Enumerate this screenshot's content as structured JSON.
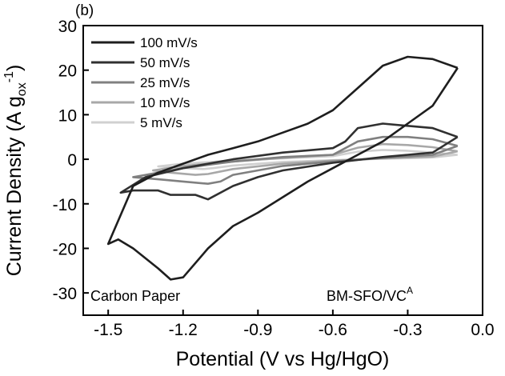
{
  "chart_data": {
    "type": "line",
    "panel_label": "(b)",
    "xlabel": "Potential (V vs Hg/HgO)",
    "ylabel": {
      "main": "Current Density (A g",
      "sub": "ox",
      "sup": "-1",
      "close": ")"
    },
    "xlim": [
      -1.6,
      0.0
    ],
    "ylim": [
      -35,
      30
    ],
    "x_ticks": [
      -1.5,
      -1.2,
      -0.9,
      -0.6,
      -0.3,
      0.0
    ],
    "x_tick_labels": [
      "-1.5",
      "-1.2",
      "-0.9",
      "-0.6",
      "-0.3",
      "0.0"
    ],
    "y_ticks": [
      -30,
      -20,
      -10,
      0,
      10,
      20,
      30
    ],
    "y_tick_labels": [
      "-30",
      "-20",
      "-10",
      "0",
      "10",
      "20",
      "30"
    ],
    "grid": false,
    "legend_position": "top-left",
    "annotations": {
      "left": "Carbon Paper",
      "right_main": "BM-SFO/VC",
      "right_sup": "A"
    },
    "series": [
      {
        "name": "100 mV/s",
        "color": "#1e1e1e",
        "points": [
          [
            -0.1,
            20.5
          ],
          [
            -0.2,
            22.5
          ],
          [
            -0.3,
            23
          ],
          [
            -0.4,
            21
          ],
          [
            -0.5,
            16
          ],
          [
            -0.6,
            11
          ],
          [
            -0.7,
            8
          ],
          [
            -0.8,
            6
          ],
          [
            -0.9,
            4
          ],
          [
            -1.0,
            2.5
          ],
          [
            -1.1,
            1
          ],
          [
            -1.2,
            -1
          ],
          [
            -1.3,
            -3
          ],
          [
            -1.4,
            -6
          ],
          [
            -1.5,
            -19
          ],
          [
            -1.46,
            -18
          ],
          [
            -1.4,
            -20
          ],
          [
            -1.3,
            -24.5
          ],
          [
            -1.25,
            -27
          ],
          [
            -1.2,
            -26.5
          ],
          [
            -1.1,
            -20
          ],
          [
            -1.0,
            -15
          ],
          [
            -0.9,
            -12
          ],
          [
            -0.8,
            -8.5
          ],
          [
            -0.7,
            -5
          ],
          [
            -0.6,
            -2
          ],
          [
            -0.5,
            1
          ],
          [
            -0.4,
            4
          ],
          [
            -0.3,
            8
          ],
          [
            -0.2,
            12
          ],
          [
            -0.1,
            20.5
          ]
        ]
      },
      {
        "name": "50 mV/s",
        "color": "#303030",
        "points": [
          [
            -0.1,
            5
          ],
          [
            -0.2,
            7
          ],
          [
            -0.3,
            7.5
          ],
          [
            -0.4,
            8
          ],
          [
            -0.5,
            7
          ],
          [
            -0.55,
            4
          ],
          [
            -0.6,
            2.5
          ],
          [
            -0.8,
            1.5
          ],
          [
            -1.0,
            0
          ],
          [
            -1.2,
            -2
          ],
          [
            -1.35,
            -4
          ],
          [
            -1.45,
            -7.5
          ],
          [
            -1.4,
            -7
          ],
          [
            -1.3,
            -7
          ],
          [
            -1.25,
            -8
          ],
          [
            -1.2,
            -8
          ],
          [
            -1.15,
            -8
          ],
          [
            -1.1,
            -9
          ],
          [
            -1.0,
            -6
          ],
          [
            -0.9,
            -4
          ],
          [
            -0.8,
            -2.5
          ],
          [
            -0.6,
            -0.8
          ],
          [
            -0.4,
            0.5
          ],
          [
            -0.2,
            1.5
          ],
          [
            -0.1,
            5
          ]
        ]
      },
      {
        "name": "25 mV/s",
        "color": "#808080",
        "points": [
          [
            -0.1,
            3
          ],
          [
            -0.2,
            4.5
          ],
          [
            -0.3,
            5
          ],
          [
            -0.4,
            5
          ],
          [
            -0.5,
            4
          ],
          [
            -0.6,
            1
          ],
          [
            -0.8,
            0.5
          ],
          [
            -1.0,
            -0.5
          ],
          [
            -1.2,
            -2
          ],
          [
            -1.35,
            -3.5
          ],
          [
            -1.4,
            -4
          ],
          [
            -1.3,
            -4.5
          ],
          [
            -1.2,
            -5
          ],
          [
            -1.1,
            -5.5
          ],
          [
            -1.05,
            -5
          ],
          [
            -1.0,
            -3.5
          ],
          [
            -0.8,
            -1.5
          ],
          [
            -0.6,
            -0.5
          ],
          [
            -0.4,
            0.3
          ],
          [
            -0.2,
            1
          ],
          [
            -0.1,
            3
          ]
        ]
      },
      {
        "name": "10 mV/s",
        "color": "#a8a8a8",
        "points": [
          [
            -0.1,
            1.8
          ],
          [
            -0.2,
            2.7
          ],
          [
            -0.3,
            3.2
          ],
          [
            -0.4,
            3.4
          ],
          [
            -0.5,
            2.6
          ],
          [
            -0.6,
            1
          ],
          [
            -0.8,
            0.3
          ],
          [
            -1.0,
            -0.5
          ],
          [
            -1.2,
            -1.5
          ],
          [
            -1.32,
            -2.5
          ],
          [
            -1.25,
            -3
          ],
          [
            -1.15,
            -3.5
          ],
          [
            -1.1,
            -3.3
          ],
          [
            -1.0,
            -2.2
          ],
          [
            -0.8,
            -1.0
          ],
          [
            -0.6,
            -0.3
          ],
          [
            -0.4,
            0.2
          ],
          [
            -0.2,
            0.6
          ],
          [
            -0.1,
            1.8
          ]
        ]
      },
      {
        "name": "5 mV/s",
        "color": "#d0d0d0",
        "points": [
          [
            -0.1,
            1.0
          ],
          [
            -0.2,
            1.5
          ],
          [
            -0.3,
            1.9
          ],
          [
            -0.4,
            2.1
          ],
          [
            -0.5,
            1.7
          ],
          [
            -0.6,
            0.7
          ],
          [
            -0.8,
            0.2
          ],
          [
            -1.0,
            -0.3
          ],
          [
            -1.2,
            -1.0
          ],
          [
            -1.3,
            -1.6
          ],
          [
            -1.22,
            -1.9
          ],
          [
            -1.12,
            -2.2
          ],
          [
            -1.08,
            -2.0
          ],
          [
            -1.0,
            -1.4
          ],
          [
            -0.8,
            -0.6
          ],
          [
            -0.6,
            -0.2
          ],
          [
            -0.4,
            0.1
          ],
          [
            -0.2,
            0.4
          ],
          [
            -0.1,
            1.0
          ]
        ]
      }
    ]
  }
}
